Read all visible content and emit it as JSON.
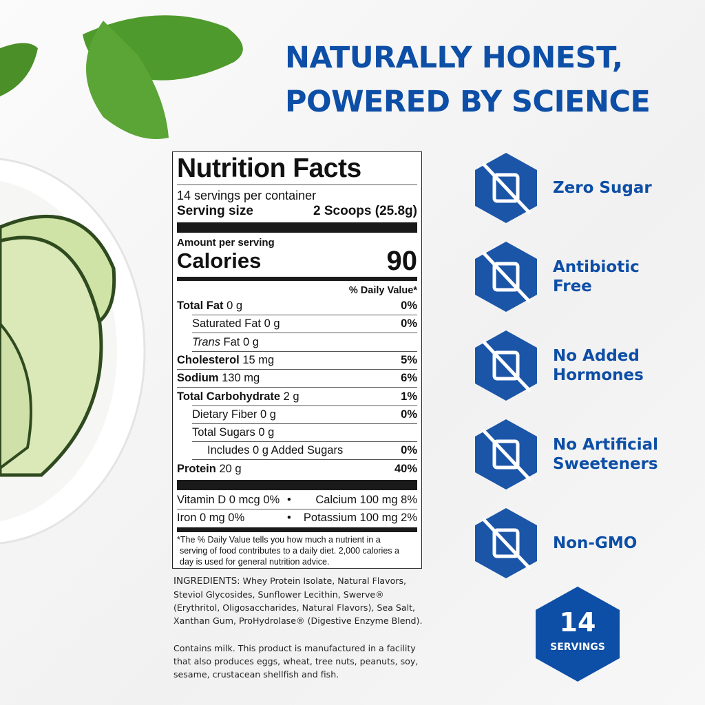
{
  "headline": [
    "NATURALLY HONEST,",
    "POWERED BY SCIENCE"
  ],
  "nutrition": {
    "title": "Nutrition Facts",
    "servings": "14 servings per container",
    "serving_size_label": "Serving size",
    "serving_size_value": "2 Scoops (25.8g)",
    "amount_per_serving": "Amount per serving",
    "calories_label": "Calories",
    "calories_value": "90",
    "dv_header": "% Daily Value*",
    "rows": [
      {
        "name": "Total Fat",
        "amount": "0 g",
        "dv": "0%",
        "bold": true,
        "indent": 0
      },
      {
        "name": "Saturated Fat",
        "amount": "0 g",
        "dv": "0%",
        "bold": false,
        "indent": 1
      },
      {
        "name": "Trans",
        "amount": "Fat 0 g",
        "dv": "",
        "bold": false,
        "indent": 1,
        "italic": true
      },
      {
        "name": "Cholesterol",
        "amount": "15 mg",
        "dv": "5%",
        "bold": true,
        "indent": 0
      },
      {
        "name": "Sodium",
        "amount": "130 mg",
        "dv": "6%",
        "bold": true,
        "indent": 0
      },
      {
        "name": "Total Carbohydrate",
        "amount": "2 g",
        "dv": "1%",
        "bold": true,
        "indent": 0
      },
      {
        "name": "Dietary Fiber",
        "amount": "0 g",
        "dv": "0%",
        "bold": false,
        "indent": 1
      },
      {
        "name": "Total Sugars",
        "amount": "0 g",
        "dv": "",
        "bold": false,
        "indent": 1
      },
      {
        "name": "Includes 0 g Added Sugars",
        "amount": "",
        "dv": "0%",
        "bold": false,
        "indent": 2
      },
      {
        "name": "Protein",
        "amount": "20 g",
        "dv": "40%",
        "bold": true,
        "indent": 0
      }
    ],
    "vitamins": [
      {
        "left": "Vitamin D 0 mcg 0%",
        "right": "Calcium 100 mg 8%"
      },
      {
        "left": "Iron 0 mg 0%",
        "right": "Potassium 100 mg 2%"
      }
    ],
    "bullet": "•",
    "footnote": [
      "*The % Daily Value tells you how much a nutrient in a",
      "serving of food contributes to a daily diet. 2,000 calories a",
      "day is used for general nutrition advice."
    ]
  },
  "ingredients": {
    "label": "INGREDIENTS",
    "text": ": Whey Protein Isolate, Natural Flavors, Steviol Glycosides, Sunflower Lecithin, Swerve® (Erythritol, Oligosaccharides, Natural Flavors), Sea Salt, Xanthan Gum, ProHydrolase® (Digestive Enzyme Blend).",
    "allergen": "Contains milk. This product is manufactured in a facility that also produces eggs, wheat, tree nuts, peanuts, soy, sesame, crustacean shellfish and fish."
  },
  "features": [
    {
      "icon": "sugar-cubes-crossed-icon",
      "lines": [
        "Zero Sugar"
      ]
    },
    {
      "icon": "capsule-crossed-icon",
      "lines": [
        "Antibiotic",
        "Free"
      ]
    },
    {
      "icon": "syringe-crossed-icon",
      "lines": [
        "No Added",
        "Hormones"
      ]
    },
    {
      "icon": "sweetener-packet-crossed-icon",
      "lines": [
        "No Artificial",
        "Sweeteners"
      ]
    },
    {
      "icon": "dna-crossed-icon",
      "lines": [
        "Non-GMO"
      ]
    }
  ],
  "badge": {
    "number": "14",
    "label": "SERVINGS"
  },
  "colors": {
    "brand_blue": "#0d4ea6",
    "icon_blue": "#1b55a8"
  }
}
